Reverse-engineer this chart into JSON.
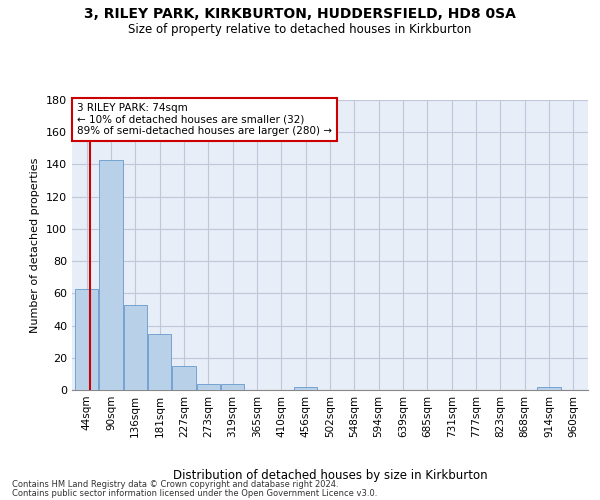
{
  "title": "3, RILEY PARK, KIRKBURTON, HUDDERSFIELD, HD8 0SA",
  "subtitle": "Size of property relative to detached houses in Kirkburton",
  "xlabel": "Distribution of detached houses by size in Kirkburton",
  "ylabel": "Number of detached properties",
  "bar_color": "#b8d0e8",
  "bar_edge_color": "#6699cc",
  "background_color": "#e8eef8",
  "grid_color": "#c0c8d8",
  "categories": [
    "44sqm",
    "90sqm",
    "136sqm",
    "181sqm",
    "227sqm",
    "273sqm",
    "319sqm",
    "365sqm",
    "410sqm",
    "456sqm",
    "502sqm",
    "548sqm",
    "594sqm",
    "639sqm",
    "685sqm",
    "731sqm",
    "777sqm",
    "823sqm",
    "868sqm",
    "914sqm",
    "960sqm"
  ],
  "values": [
    63,
    143,
    53,
    35,
    15,
    4,
    4,
    0,
    0,
    2,
    0,
    0,
    0,
    0,
    0,
    0,
    0,
    0,
    0,
    2,
    0
  ],
  "annotation_text": "3 RILEY PARK: 74sqm\n← 10% of detached houses are smaller (32)\n89% of semi-detached houses are larger (280) →",
  "annotation_box_color": "#ffffff",
  "annotation_box_edge": "#cc0000",
  "property_line_color": "#cc0000",
  "ylim": [
    0,
    180
  ],
  "yticks": [
    0,
    20,
    40,
    60,
    80,
    100,
    120,
    140,
    160,
    180
  ],
  "footer_line1": "Contains HM Land Registry data © Crown copyright and database right 2024.",
  "footer_line2": "Contains public sector information licensed under the Open Government Licence v3.0."
}
